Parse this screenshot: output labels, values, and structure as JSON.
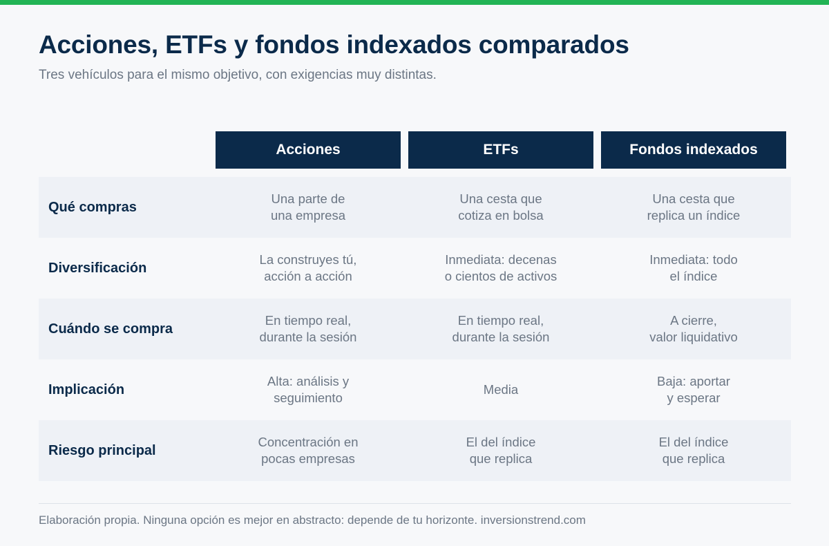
{
  "page": {
    "title": "Acciones, ETFs y fondos indexados comparados",
    "subtitle": "Tres vehículos para el mismo objetivo, con exigencias muy distintas.",
    "footer": "Elaboración propia. Ninguna opción es mejor en abstracto: depende de tu horizonte. inversionstrend.com",
    "accent_color": "#22b455",
    "header_color": "#0b2a4a"
  },
  "table": {
    "columns": [
      "Acciones",
      "ETFs",
      "Fondos indexados"
    ],
    "rows": [
      {
        "label": "Qué compras",
        "cells": [
          [
            "Una parte de",
            "una empresa"
          ],
          [
            "Una cesta que",
            "cotiza en bolsa"
          ],
          [
            "Una cesta que",
            "replica un índice"
          ]
        ]
      },
      {
        "label": "Diversificación",
        "cells": [
          [
            "La construyes tú,",
            "acción a acción"
          ],
          [
            "Inmediata: decenas",
            "o cientos de activos"
          ],
          [
            "Inmediata: todo",
            "el índice"
          ]
        ]
      },
      {
        "label": "Cuándo se compra",
        "cells": [
          [
            "En tiempo real,",
            "durante la sesión"
          ],
          [
            "En tiempo real,",
            "durante la sesión"
          ],
          [
            "A cierre,",
            "valor liquidativo"
          ]
        ]
      },
      {
        "label": "Implicación",
        "cells": [
          [
            "Alta: análisis y",
            "seguimiento"
          ],
          [
            "Media"
          ],
          [
            "Baja: aportar",
            "y esperar"
          ]
        ]
      },
      {
        "label": "Riesgo principal",
        "cells": [
          [
            "Concentración en",
            "pocas empresas"
          ],
          [
            "El del índice",
            "que replica"
          ],
          [
            "El del índice",
            "que replica"
          ]
        ]
      }
    ]
  }
}
